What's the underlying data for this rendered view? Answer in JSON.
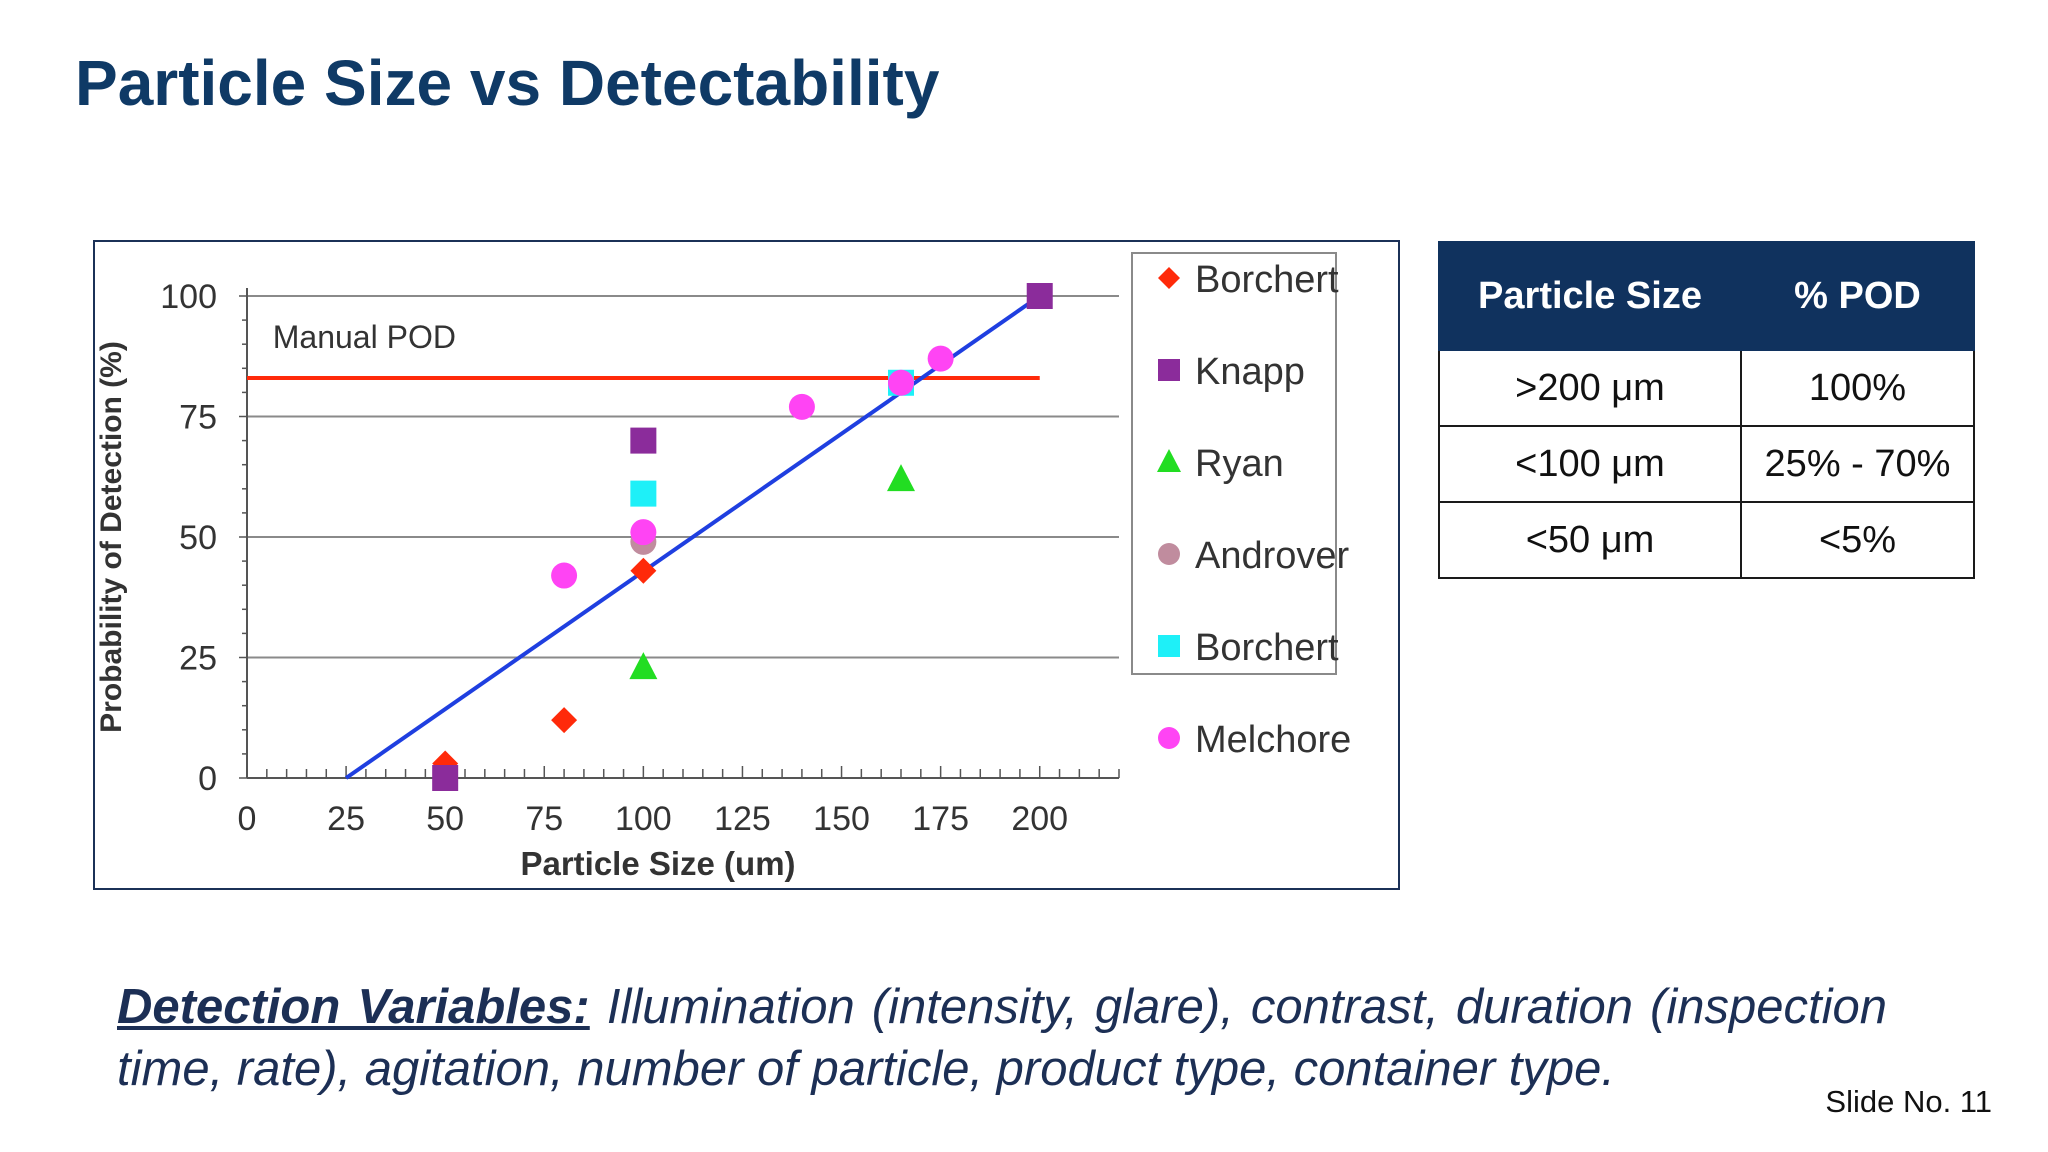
{
  "slide": {
    "title": "Particle Size vs Detectability",
    "slide_number": "Slide No. 11"
  },
  "chart_data": {
    "type": "scatter",
    "xlabel": "Particle Size (um)",
    "ylabel": "Probability of Detection (%)",
    "xlim": [
      0,
      220
    ],
    "ylim": [
      0,
      100
    ],
    "x_ticks": [
      0,
      25,
      50,
      75,
      100,
      125,
      150,
      175,
      200
    ],
    "y_ticks": [
      0,
      25,
      50,
      75,
      100
    ],
    "grid": "horizontal",
    "legend_position": "right",
    "annotation": "Manual POD",
    "manual_pod": {
      "y": 83,
      "x_start": 0,
      "x_end": 200,
      "color": "#ff2a0a"
    },
    "trend_line": {
      "x": [
        25,
        200
      ],
      "y": [
        0,
        100
      ],
      "color": "#1f3fe0"
    },
    "series": [
      {
        "name": "Borchert",
        "marker": "diamond",
        "color": "#ff2a0a",
        "points": [
          [
            50,
            3
          ],
          [
            80,
            12
          ],
          [
            100,
            43
          ]
        ]
      },
      {
        "name": "Knapp",
        "marker": "square",
        "color": "#8b2c9b",
        "points": [
          [
            50,
            0
          ],
          [
            100,
            70
          ],
          [
            200,
            100
          ]
        ]
      },
      {
        "name": "Ryan",
        "marker": "triangle",
        "color": "#22dd22",
        "points": [
          [
            100,
            23
          ],
          [
            165,
            62
          ]
        ]
      },
      {
        "name": "Androver",
        "marker": "circle",
        "color": "#c08c9e",
        "points": [
          [
            100,
            49
          ]
        ]
      },
      {
        "name": "Borchert",
        "marker": "square",
        "color": "#1ef0f8",
        "points": [
          [
            100,
            59
          ],
          [
            165,
            82
          ]
        ]
      },
      {
        "name": "Melchore",
        "marker": "circle",
        "color": "#ff44f4",
        "points": [
          [
            80,
            42
          ],
          [
            100,
            51
          ],
          [
            140,
            77
          ],
          [
            165,
            82
          ],
          [
            175,
            87
          ]
        ]
      }
    ]
  },
  "pod_table": {
    "headers": [
      "Particle Size",
      "% POD"
    ],
    "rows": [
      {
        "size": ">200 μm",
        "pod": "100%"
      },
      {
        "size": "<100 μm",
        "pod": "25% - 70%"
      },
      {
        "size": "<50 μm",
        "pod": "<5%"
      }
    ]
  },
  "detection": {
    "label": "Detection Variables:",
    "text": " Illumination (intensity, glare), contrast, duration (inspection time, rate), agitation, number of particle, product type, container type."
  }
}
